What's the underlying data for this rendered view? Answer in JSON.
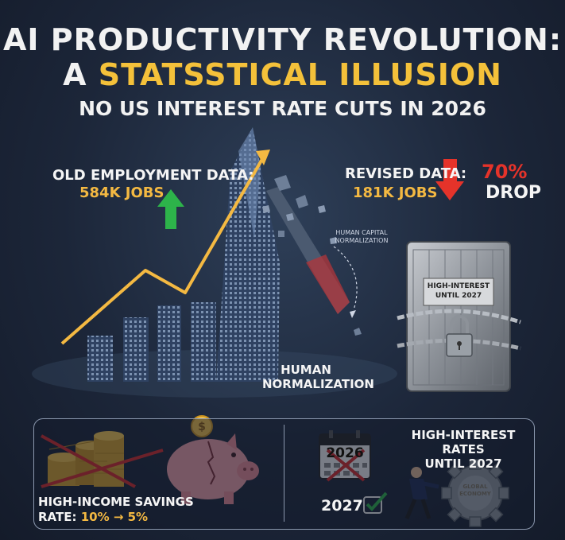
{
  "title": {
    "line1": "AI PRODUCTIVITY REVOLUTION:",
    "line2_prefix": "A ",
    "line2_highlight": "STATSSTICAL ILLUSION",
    "subtitle": "NO US INTEREST RATE CUTS IN 2026"
  },
  "old_data": {
    "label": "OLD EMPLOYMENT DATA:",
    "value": "584K JOBS"
  },
  "revised_data": {
    "label": "REVISED DATA:",
    "value": "181K JOBS",
    "drop_pct": "70%",
    "drop_word": "DROP"
  },
  "annotations": {
    "human_capital": "HUMAN CAPITAL NORMALIZATION",
    "human_norm_1": "HUMAN",
    "human_norm_2": "NORMALIZATION",
    "vault_sign_1": "HIGH-INTEREST",
    "vault_sign_2": "UNTIL 2027"
  },
  "bottom_left": {
    "line1": "HIGH-INCOME SAVINGS",
    "rate_label": "RATE: ",
    "rate_value": "10% → 5%"
  },
  "bottom_right": {
    "title1": "HIGH-INTEREST RATES",
    "title2": "UNTIL 2027",
    "calendar_year": "2026",
    "new_year": "2027",
    "gear_line1": "GLOBAL",
    "gear_line2": "ECONOMY"
  },
  "colors": {
    "accent_yellow": "#f4c13a",
    "up_green": "#2db34a",
    "down_red": "#e5332a"
  },
  "icons": [
    "up-arrow-icon",
    "down-arrow-icon",
    "padlock-icon",
    "chain-icon",
    "calendar-icon",
    "checkmark-icon",
    "gear-icon",
    "piggy-bank-icon",
    "coin-stack-icon",
    "dollar-coin-icon"
  ]
}
